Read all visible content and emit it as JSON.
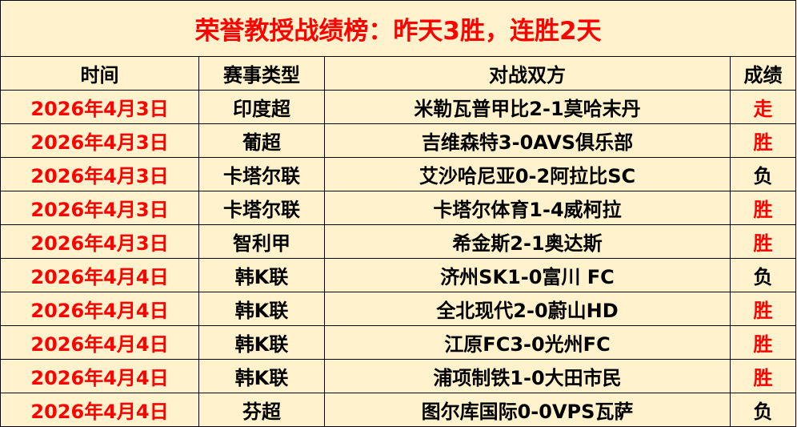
{
  "title": "荣誉教授战绩榜：昨天3胜，连胜2天",
  "colors": {
    "accent": "#ff0000",
    "background": "#fff2cc",
    "text": "#000000"
  },
  "headers": [
    "时间",
    "赛事类型",
    "对战双方",
    "成绩"
  ],
  "rows": [
    {
      "date": "2026年4月3日",
      "league": "印度超",
      "match": "米勒瓦普甲比2-1莫哈末丹",
      "result": "走",
      "result_red": true
    },
    {
      "date": "2026年4月3日",
      "league": "葡超",
      "match": "吉维森特3-0AVS俱乐部",
      "result": "胜",
      "result_red": true
    },
    {
      "date": "2026年4月3日",
      "league": "卡塔尔联",
      "match": "艾沙哈尼亚0-2阿拉比SC",
      "result": "负",
      "result_red": false
    },
    {
      "date": "2026年4月3日",
      "league": "卡塔尔联",
      "match": "卡塔尔体育1-4威柯拉",
      "result": "胜",
      "result_red": true
    },
    {
      "date": "2026年4月3日",
      "league": "智利甲",
      "match": "希金斯2-1奥达斯",
      "result": "胜",
      "result_red": true
    },
    {
      "date": "2026年4月4日",
      "league": "韩K联",
      "match": "济州SK1-0富川 FC",
      "result": "负",
      "result_red": false
    },
    {
      "date": "2026年4月4日",
      "league": "韩K联",
      "match": "全北现代2-0蔚山HD",
      "result": "胜",
      "result_red": true
    },
    {
      "date": "2026年4月4日",
      "league": "韩K联",
      "match": "江原FC3-0光州FC",
      "result": "胜",
      "result_red": true
    },
    {
      "date": "2026年4月4日",
      "league": "韩K联",
      "match": "浦项制铁1-0大田市民",
      "result": "胜",
      "result_red": true
    },
    {
      "date": "2026年4月4日",
      "league": "芬超",
      "match": "图尔库国际0-0VPS瓦萨",
      "result": "负",
      "result_red": false
    }
  ]
}
